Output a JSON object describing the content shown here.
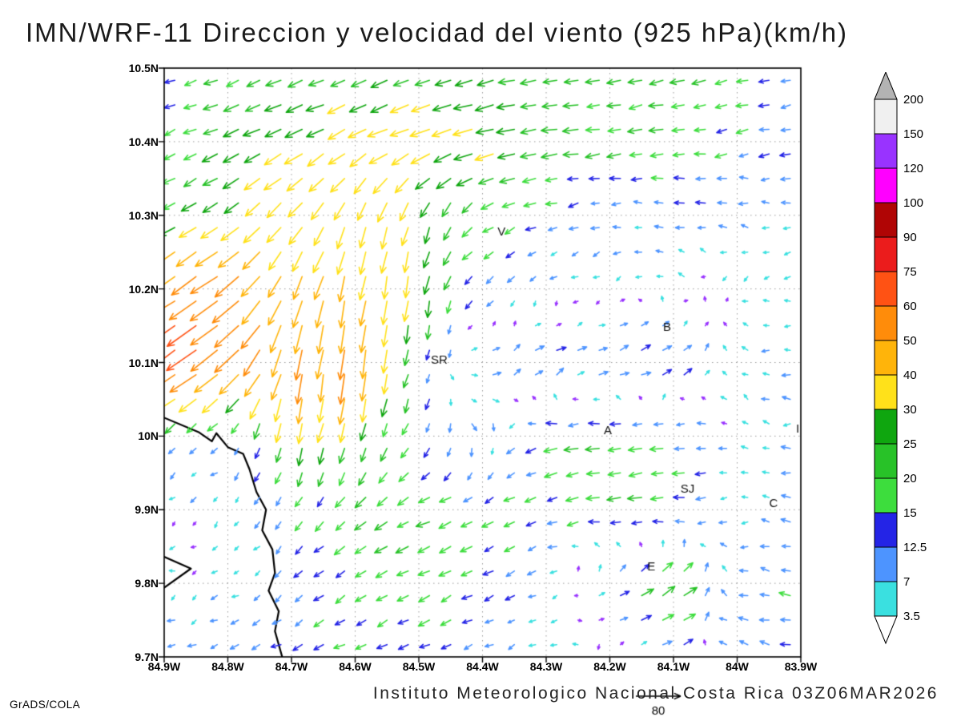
{
  "title": "IMN/WRF-11 Direccion y velocidad del viento (925 hPa)(km/h)",
  "footer": {
    "caption": "Instituto Meteorologico Nacional Costa Rica 03Z06MAR2026",
    "credit": "GrADS/COLA"
  },
  "chart_data": {
    "type": "vector",
    "title": "IMN/WRF-11 Direccion y velocidad del viento (925 hPa)(km/h)",
    "units": "km/h",
    "level": "925 hPa",
    "lon_range": [
      84.9,
      83.9
    ],
    "lat_range": [
      9.7,
      10.5
    ],
    "x_ticks": [
      {
        "label": "84.9W",
        "lon": 84.9
      },
      {
        "label": "84.8W",
        "lon": 84.8
      },
      {
        "label": "84.7W",
        "lon": 84.7
      },
      {
        "label": "84.6W",
        "lon": 84.6
      },
      {
        "label": "84.5W",
        "lon": 84.5
      },
      {
        "label": "84.4W",
        "lon": 84.4
      },
      {
        "label": "84.3W",
        "lon": 84.3
      },
      {
        "label": "84.2W",
        "lon": 84.2
      },
      {
        "label": "84.1W",
        "lon": 84.1
      },
      {
        "label": "84W",
        "lon": 84.0
      },
      {
        "label": "83.9W",
        "lon": 83.9
      }
    ],
    "y_ticks": [
      {
        "label": "10.5N",
        "lat": 10.5
      },
      {
        "label": "10.4N",
        "lat": 10.4
      },
      {
        "label": "10.3N",
        "lat": 10.3
      },
      {
        "label": "10.2N",
        "lat": 10.2
      },
      {
        "label": "10.1N",
        "lat": 10.1
      },
      {
        "label": "10N",
        "lat": 10.0
      },
      {
        "label": "9.9N",
        "lat": 9.9
      },
      {
        "label": "9.8N",
        "lat": 9.8
      },
      {
        "label": "9.7N",
        "lat": 9.7
      }
    ],
    "speed_levels": [
      3.5,
      7,
      12.5,
      15,
      20,
      25,
      30,
      40,
      50,
      60,
      75,
      90,
      100,
      120,
      150,
      200
    ],
    "arrow_colors": [
      "#9933ff",
      "#3ae0e0",
      "#4d94ff",
      "#2424e6",
      "#3ddd3d",
      "#28c228",
      "#0fa60f",
      "#ffe11a",
      "#ffb40a",
      "#ff8c0a",
      "#ff5214",
      "#eb1c1c",
      "#b00505",
      "#ff00ff",
      "#9933ff",
      "#f0f0f0",
      "#b3b3b3"
    ],
    "colorbar_labels": [
      "200",
      "150",
      "120",
      "100",
      "90",
      "75",
      "60",
      "50",
      "40",
      "30",
      "25",
      "20",
      "15",
      "12.5",
      "7",
      "3.5"
    ],
    "colorbar_bottom": "#ffffff",
    "reference_vector": {
      "label": "80",
      "speed": 80
    },
    "annotations": [
      {
        "text": "V",
        "lon": 84.37,
        "lat": 10.272
      },
      {
        "text": "B",
        "lon": 84.11,
        "lat": 10.143
      },
      {
        "text": "SR",
        "lon": 84.468,
        "lat": 10.098
      },
      {
        "text": "A",
        "lon": 84.203,
        "lat": 10.003
      },
      {
        "text": "SJ",
        "lon": 84.078,
        "lat": 9.923
      },
      {
        "text": "C",
        "lon": 83.943,
        "lat": 9.903
      },
      {
        "text": "E",
        "lon": 84.135,
        "lat": 9.818
      },
      {
        "text": "I",
        "lon": 83.905,
        "lat": 10.005
      }
    ],
    "coastlines": [
      [
        [
          84.9,
          10.025
        ],
        [
          84.845,
          10.005
        ],
        [
          84.825,
          9.993
        ],
        [
          84.818,
          10.004
        ],
        [
          84.8,
          9.985
        ],
        [
          84.776,
          9.976
        ],
        [
          84.766,
          9.955
        ],
        [
          84.755,
          9.924
        ],
        [
          84.74,
          9.9
        ],
        [
          84.746,
          9.872
        ],
        [
          84.73,
          9.846
        ],
        [
          84.726,
          9.814
        ],
        [
          84.736,
          9.79
        ],
        [
          84.72,
          9.762
        ],
        [
          84.726,
          9.735
        ],
        [
          84.714,
          9.698
        ]
      ],
      [
        [
          84.9,
          9.836
        ],
        [
          84.858,
          9.82
        ],
        [
          84.9,
          9.794
        ]
      ]
    ],
    "grid": {
      "lons": [
        84.9,
        84.8,
        84.7,
        84.6,
        84.5,
        84.4,
        84.3,
        84.2,
        84.1,
        84.0,
        83.9
      ],
      "lats": [
        10.5,
        10.4,
        10.3,
        10.2,
        10.1,
        10.0,
        9.9,
        9.8,
        9.7
      ],
      "u": [
        [
          -12,
          -18,
          -20,
          -22,
          -20,
          -25,
          -22,
          -18,
          -20,
          -16,
          -14
        ],
        [
          -15,
          -22,
          -28,
          -30,
          -33,
          -30,
          -24,
          -20,
          -18,
          -14,
          -12
        ],
        [
          -18,
          -25,
          -22,
          -12,
          -8,
          -15,
          -12,
          -8,
          -10,
          -8,
          -10
        ],
        [
          -45,
          -50,
          -15,
          -8,
          -5,
          -10,
          -5,
          -2,
          -3,
          -2,
          -6
        ],
        [
          -55,
          -45,
          -10,
          -5,
          -4,
          8,
          12,
          15,
          15,
          -3,
          -8
        ],
        [
          -10,
          -5,
          -8,
          -6,
          -8,
          5,
          -18,
          -20,
          -15,
          -5,
          -10
        ],
        [
          -3,
          -3,
          -6,
          -15,
          -18,
          -15,
          -12,
          -18,
          -20,
          -4,
          -12
        ],
        [
          -3,
          -3,
          -8,
          -15,
          -18,
          -12,
          -8,
          10,
          25,
          -10,
          -14
        ],
        [
          -8,
          -10,
          -12,
          -12,
          -14,
          -10,
          -4,
          -3,
          12,
          -12,
          -10
        ]
      ],
      "v": [
        [
          -4,
          -6,
          -8,
          -8,
          -10,
          -6,
          -4,
          -4,
          -5,
          -4,
          -4
        ],
        [
          -6,
          -10,
          -14,
          -16,
          -12,
          -8,
          -4,
          -3,
          -3,
          -3,
          -2
        ],
        [
          -10,
          -15,
          -25,
          -33,
          -30,
          -10,
          -4,
          -2,
          2,
          2,
          -2
        ],
        [
          -30,
          -35,
          -40,
          -45,
          -30,
          -8,
          -3,
          -2,
          2,
          -2,
          -2
        ],
        [
          -40,
          -35,
          -50,
          -55,
          -15,
          6,
          8,
          5,
          8,
          3,
          0
        ],
        [
          -8,
          -4,
          -30,
          -25,
          -12,
          -8,
          -3,
          -2,
          -3,
          2,
          0
        ],
        [
          -2,
          -3,
          -10,
          -12,
          -8,
          -6,
          -5,
          -3,
          -2,
          -2,
          3
        ],
        [
          -2,
          -2,
          -8,
          -10,
          -8,
          -6,
          -4,
          8,
          15,
          3,
          2
        ],
        [
          -4,
          -4,
          -5,
          -6,
          -5,
          -4,
          -2,
          -2,
          6,
          3,
          2
        ]
      ]
    }
  }
}
